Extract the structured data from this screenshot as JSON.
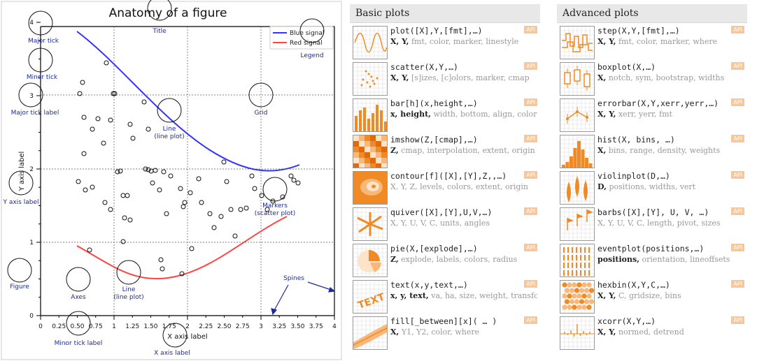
{
  "anatomy": {
    "title": "Anatomy of a figure",
    "legend": [
      "Blue signal",
      "Red signal"
    ],
    "xticks": [
      "0",
      "0.25",
      "0.50",
      "0.75",
      "1",
      "1.25",
      "1.50",
      "1.75",
      "2",
      "2.25",
      "2.50",
      "2.75",
      "3",
      "3.25",
      "3.50",
      "3.75",
      "4"
    ],
    "yticks": [
      "0",
      "1",
      "2",
      "3",
      "4"
    ],
    "annotations": {
      "major_tick": "Major tick",
      "minor_tick": "Minor tick",
      "major_tick_label": "Major tick label",
      "title": "Title",
      "legend": "Legend",
      "grid": "Grid",
      "line_plot_1": "Line",
      "line_plot_1b": "(line plot)",
      "y_axis_label": "Y axis label",
      "markers": "Markers",
      "markers_b": "(scatter plot)",
      "figure": "Figure",
      "axes": "Axes",
      "line_plot_2": "Line",
      "line_plot_2b": "(line plot)",
      "spines": "Spines",
      "minor_tick_label": "Minor tick label",
      "x_axis_label": "X axis label",
      "x_axis_text": "X axis label",
      "y_axis_text": "Y axis label"
    }
  },
  "colors": {
    "blue": "#3333ff",
    "red": "#ff4444",
    "accent": "#f08a24",
    "annot": "#1a2a9a"
  },
  "basic": {
    "title": "Basic plots",
    "items": [
      {
        "fn": "plot([X],Y,[fmt],…)",
        "bold": "X, Y,",
        "rest": " fmt, color, marker, linestyle",
        "icon": "plot-icon"
      },
      {
        "fn": "scatter(X,Y,…)",
        "bold": "X, Y,",
        "rest": " [s]izes, [c]olors, marker, cmap",
        "icon": "scatter-icon"
      },
      {
        "fn": "bar[h](x,height,…)",
        "bold": "x, height,",
        "rest": " width, bottom, align, color",
        "icon": "bar-icon"
      },
      {
        "fn": "imshow(Z,[cmap],…)",
        "bold": "Z,",
        "rest": " cmap, interpolation, extent, origin",
        "icon": "imshow-icon"
      },
      {
        "fn": "contour[f]([X],[Y],Z,,…)",
        "bold": "",
        "rest": "X, Y, Z, levels, colors, extent, origin",
        "icon": "contour-icon"
      },
      {
        "fn": "quiver([X],[Y],U,V,…)",
        "bold": "",
        "rest": "X, Y, U, V, C, units, angles",
        "icon": "quiver-icon"
      },
      {
        "fn": "pie(X,[explode],…)",
        "bold": "Z,",
        "rest": " explode, labels, colors, radius",
        "icon": "pie-icon"
      },
      {
        "fn": "text(x,y,text,…)",
        "bold": "x, y, text,",
        "rest": " va, ha, size, weight, transform",
        "icon": "text-icon"
      },
      {
        "fn": "fill[_between][x]( … )",
        "bold": "X,",
        "rest": " Y1, Y2, color, where",
        "icon": "fill-icon"
      }
    ]
  },
  "advanced": {
    "title": "Advanced plots",
    "items": [
      {
        "fn": "step(X,Y,[fmt],…)",
        "bold": "X, Y,",
        "rest": " fmt, color, marker, where",
        "icon": "step-icon"
      },
      {
        "fn": "boxplot(X,…)",
        "bold": "X,",
        "rest": " notch, sym, bootstrap, widths",
        "icon": "boxplot-icon"
      },
      {
        "fn": "errorbar(X,Y,xerr,yerr,…)",
        "bold": "X, Y,",
        "rest": " xerr, yerr, fmt",
        "icon": "errorbar-icon"
      },
      {
        "fn": "hist(X, bins, …)",
        "bold": "X,",
        "rest": " bins, range, density, weights",
        "icon": "hist-icon"
      },
      {
        "fn": "violinplot(D,…)",
        "bold": "D,",
        "rest": " positions, widths, vert",
        "icon": "violin-icon"
      },
      {
        "fn": "barbs([X],[Y], U, V, …)",
        "bold": "",
        "rest": "X, Y, U, V, C, length, pivot, sizes",
        "icon": "barbs-icon"
      },
      {
        "fn": "eventplot(positions,…)",
        "bold": "positions,",
        "rest": " orientation, lineoffsets",
        "icon": "eventplot-icon"
      },
      {
        "fn": "hexbin(X,Y,C,…)",
        "bold": "X, Y,",
        "rest": " C, gridsize, bins",
        "icon": "hexbin-icon"
      },
      {
        "fn": "xcorr(X,Y,…)",
        "bold": "X, Y,",
        "rest": " normed, detrend",
        "icon": "xcorr-icon"
      }
    ],
    "api": "API"
  }
}
